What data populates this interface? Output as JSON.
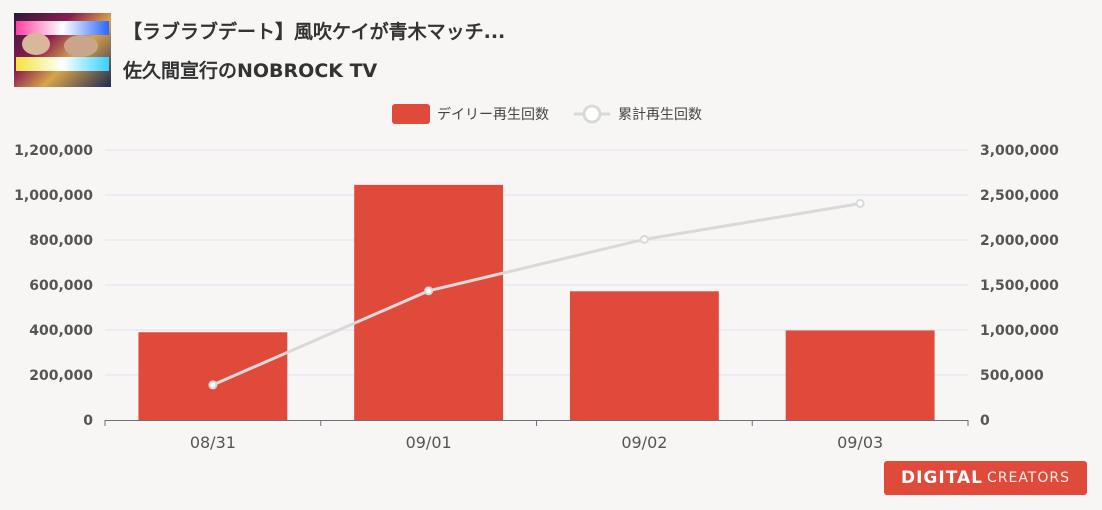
{
  "video": {
    "title": "【ラブラブデート】風吹ケイが青木マッチ...",
    "channel": "佐久間宣行のNOBROCK TV",
    "thumbnail_icon": "video-thumbnail"
  },
  "brand": {
    "part1": "DIGITAL",
    "part2": "CREATORS"
  },
  "colors": {
    "bar": "#e04a3b",
    "line": "#d9d9d9",
    "grid": "#dfe3f0",
    "axis_text": "#555555"
  },
  "chart_data": {
    "type": "bar",
    "categories": [
      "08/31",
      "09/01",
      "09/02",
      "09/03"
    ],
    "series": [
      {
        "name": "デイリー再生回数",
        "type": "bar",
        "axis": "left",
        "values": [
          390000,
          1045000,
          572000,
          398000
        ]
      },
      {
        "name": "累計再生回数",
        "type": "line",
        "axis": "right",
        "values": [
          390000,
          1435000,
          2007000,
          2405000
        ]
      }
    ],
    "y_left": {
      "min": 0,
      "max": 1200000,
      "ticks": [
        "0",
        "200,000",
        "400,000",
        "600,000",
        "800,000",
        "1,000,000",
        "1,200,000"
      ]
    },
    "y_right": {
      "min": 0,
      "max": 3000000,
      "ticks": [
        "0",
        "500,000",
        "1,000,000",
        "1,500,000",
        "2,000,000",
        "2,500,000",
        "3,000,000"
      ]
    },
    "legend_position": "top-center",
    "grid": true
  }
}
